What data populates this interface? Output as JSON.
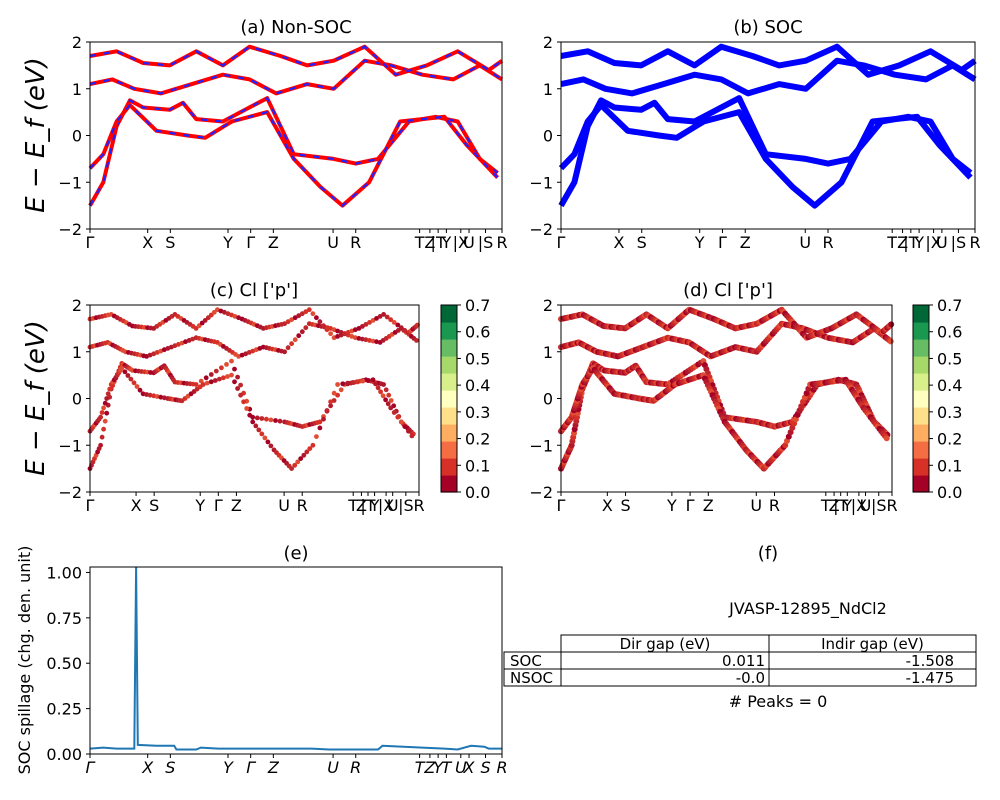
{
  "figure": {
    "ylabel_band": "E − E_f (eV)",
    "band_ylim": [
      -2,
      2
    ],
    "band_yticks": [
      "2",
      "1",
      "0",
      "−1",
      "−2"
    ],
    "kpath_full": [
      "Γ",
      "X",
      "S",
      "Y",
      "Γ",
      "Z",
      "U",
      "R",
      "T",
      "Z",
      "|T",
      "Y",
      "|X",
      "U",
      "|S",
      "R"
    ],
    "kpath_colorbar_panels": [
      "Γ",
      "X",
      "S",
      "Y",
      "Γ",
      "Z",
      "U",
      "R",
      "T",
      "Z",
      "|T",
      "Y",
      "|X",
      "U",
      "|S",
      "R"
    ],
    "kpath_italic": [
      "Γ",
      "X",
      "S",
      "Y",
      "Γ",
      "Z",
      "U",
      "R",
      "T",
      "Z",
      "Y",
      "T",
      "U",
      "X",
      "S",
      "R"
    ]
  },
  "panels": {
    "a": {
      "title": "(a) Non-SOC"
    },
    "b": {
      "title": "(b) SOC"
    },
    "c": {
      "title": "(c)  Cl ['p']"
    },
    "d": {
      "title": "(d) Cl ['p']"
    },
    "e": {
      "title": "(e)",
      "ylabel": "SOC spillage (chg. den. unit)",
      "yticks": [
        "1.00",
        "0.75",
        "0.50",
        "0.25",
        "0.00"
      ]
    },
    "f": {
      "title": "(f)"
    }
  },
  "colorbar": {
    "ticks": [
      "0.7",
      "0.6",
      "0.5",
      "0.4",
      "0.3",
      "0.2",
      "0.1",
      "0.0"
    ],
    "colors": [
      "#a50026",
      "#d73027",
      "#f46d43",
      "#fdae61",
      "#fee08b",
      "#ffffbf",
      "#d9ef8b",
      "#a6d96a",
      "#66bd63",
      "#1a9850",
      "#006837"
    ]
  },
  "info": {
    "material": "JVASP-12895_NdCl2",
    "table_headers": [
      "",
      "Dir gap (eV)",
      "Indir gap (eV)"
    ],
    "table_rows": [
      [
        "SOC",
        "0.011",
        "-1.508"
      ],
      [
        "NSOC",
        "-0.0",
        "-1.475"
      ]
    ],
    "peaks": "# Peaks = 0"
  },
  "chart_data": [
    {
      "type": "line",
      "panel": "a",
      "title": "(a) Non-SOC",
      "ylabel": "E − E_f (eV)",
      "ylim": [
        -2,
        2
      ],
      "xticks": [
        "Γ",
        "X",
        "S",
        "Y",
        "Γ",
        "Z",
        "U",
        "R",
        "T",
        "Z",
        "|T",
        "Y",
        "|X",
        "U",
        "|S",
        "R"
      ],
      "series": [
        {
          "color": "#ff0000",
          "values": [
            [
              0,
              -1.5
            ],
            [
              0.3,
              -1.0
            ],
            [
              0.6,
              0.2
            ],
            [
              0.9,
              0.75
            ],
            [
              1.2,
              0.6
            ],
            [
              1.8,
              0.55
            ],
            [
              2.1,
              0.7
            ],
            [
              2.4,
              0.35
            ],
            [
              3.0,
              0.3
            ],
            [
              4.0,
              0.8
            ],
            [
              4.6,
              -0.4
            ],
            [
              5.5,
              -0.5
            ],
            [
              6.0,
              -0.6
            ],
            [
              6.5,
              -0.5
            ],
            [
              7.2,
              0.3
            ],
            [
              7.8,
              0.4
            ],
            [
              8.3,
              0.3
            ],
            [
              8.8,
              -0.5
            ],
            [
              9.2,
              -0.8
            ]
          ]
        },
        {
          "color": "#ff0000",
          "values": [
            [
              0,
              -0.7
            ],
            [
              0.3,
              -0.4
            ],
            [
              0.6,
              0.3
            ],
            [
              0.9,
              0.65
            ],
            [
              1.5,
              0.1
            ],
            [
              2.2,
              0.0
            ],
            [
              2.6,
              -0.05
            ],
            [
              3.2,
              0.3
            ],
            [
              4.0,
              0.5
            ],
            [
              4.6,
              -0.5
            ],
            [
              5.2,
              -1.1
            ],
            [
              5.7,
              -1.5
            ],
            [
              6.3,
              -1.0
            ],
            [
              7.0,
              0.3
            ],
            [
              8.0,
              0.4
            ],
            [
              8.5,
              -0.2
            ],
            [
              9.2,
              -0.9
            ]
          ]
        },
        {
          "color": "#ff0000",
          "values": [
            [
              0,
              1.1
            ],
            [
              0.5,
              1.2
            ],
            [
              1.0,
              1.0
            ],
            [
              1.6,
              0.9
            ],
            [
              2.3,
              1.1
            ],
            [
              3.0,
              1.3
            ],
            [
              3.6,
              1.2
            ],
            [
              4.2,
              0.9
            ],
            [
              4.9,
              1.1
            ],
            [
              5.5,
              1.0
            ],
            [
              6.2,
              1.6
            ],
            [
              6.8,
              1.5
            ],
            [
              7.5,
              1.3
            ],
            [
              8.2,
              1.2
            ],
            [
              8.8,
              1.5
            ],
            [
              9.3,
              1.2
            ]
          ]
        },
        {
          "color": "#ff0000",
          "values": [
            [
              0,
              1.7
            ],
            [
              0.6,
              1.8
            ],
            [
              1.2,
              1.55
            ],
            [
              1.8,
              1.5
            ],
            [
              2.4,
              1.8
            ],
            [
              3.0,
              1.5
            ],
            [
              3.6,
              1.9
            ],
            [
              4.3,
              1.7
            ],
            [
              4.9,
              1.5
            ],
            [
              5.5,
              1.6
            ],
            [
              6.2,
              1.9
            ],
            [
              6.9,
              1.3
            ],
            [
              7.6,
              1.5
            ],
            [
              8.3,
              1.8
            ],
            [
              9.0,
              1.4
            ],
            [
              9.3,
              1.6
            ]
          ]
        }
      ]
    },
    {
      "type": "line",
      "panel": "b",
      "title": "(b) SOC",
      "ylim": [
        -2,
        2
      ],
      "xticks": [
        "Γ",
        "X",
        "S",
        "Y",
        "Γ",
        "Z",
        "U",
        "R",
        "T",
        "Z",
        "|T",
        "Y",
        "|X",
        "U",
        "|S",
        "R"
      ],
      "series": [
        {
          "color": "#0000ff",
          "values": [
            [
              0,
              -1.5
            ],
            [
              0.3,
              -1.0
            ],
            [
              0.6,
              0.2
            ],
            [
              0.9,
              0.75
            ],
            [
              1.2,
              0.6
            ],
            [
              1.8,
              0.55
            ],
            [
              2.1,
              0.7
            ],
            [
              2.4,
              0.35
            ],
            [
              3.0,
              0.3
            ],
            [
              4.0,
              0.8
            ],
            [
              4.6,
              -0.4
            ],
            [
              5.5,
              -0.5
            ],
            [
              6.0,
              -0.6
            ],
            [
              6.5,
              -0.5
            ],
            [
              7.2,
              0.3
            ],
            [
              7.8,
              0.4
            ],
            [
              8.3,
              0.3
            ],
            [
              8.8,
              -0.5
            ],
            [
              9.2,
              -0.8
            ]
          ]
        },
        {
          "color": "#0000ff",
          "values": [
            [
              0,
              -0.7
            ],
            [
              0.3,
              -0.4
            ],
            [
              0.6,
              0.3
            ],
            [
              0.9,
              0.65
            ],
            [
              1.5,
              0.1
            ],
            [
              2.2,
              0.0
            ],
            [
              2.6,
              -0.05
            ],
            [
              3.2,
              0.3
            ],
            [
              4.0,
              0.5
            ],
            [
              4.6,
              -0.5
            ],
            [
              5.2,
              -1.1
            ],
            [
              5.7,
              -1.5
            ],
            [
              6.3,
              -1.0
            ],
            [
              7.0,
              0.3
            ],
            [
              8.0,
              0.4
            ],
            [
              8.5,
              -0.2
            ],
            [
              9.2,
              -0.9
            ]
          ]
        },
        {
          "color": "#0000ff",
          "values": [
            [
              0,
              1.1
            ],
            [
              0.5,
              1.2
            ],
            [
              1.0,
              1.0
            ],
            [
              1.6,
              0.9
            ],
            [
              2.3,
              1.1
            ],
            [
              3.0,
              1.3
            ],
            [
              3.6,
              1.2
            ],
            [
              4.2,
              0.9
            ],
            [
              4.9,
              1.1
            ],
            [
              5.5,
              1.0
            ],
            [
              6.2,
              1.6
            ],
            [
              6.8,
              1.5
            ],
            [
              7.5,
              1.3
            ],
            [
              8.2,
              1.2
            ],
            [
              8.8,
              1.5
            ],
            [
              9.3,
              1.2
            ]
          ]
        },
        {
          "color": "#0000ff",
          "values": [
            [
              0,
              1.7
            ],
            [
              0.6,
              1.8
            ],
            [
              1.2,
              1.55
            ],
            [
              1.8,
              1.5
            ],
            [
              2.4,
              1.8
            ],
            [
              3.0,
              1.5
            ],
            [
              3.6,
              1.9
            ],
            [
              4.3,
              1.7
            ],
            [
              4.9,
              1.5
            ],
            [
              5.5,
              1.6
            ],
            [
              6.2,
              1.9
            ],
            [
              6.9,
              1.3
            ],
            [
              7.6,
              1.5
            ],
            [
              8.3,
              1.8
            ],
            [
              9.0,
              1.4
            ],
            [
              9.3,
              1.6
            ]
          ]
        }
      ]
    },
    {
      "type": "scatter",
      "panel": "c",
      "title": "(c)  Cl ['p']",
      "ylabel": "E − E_f (eV)",
      "ylim": [
        -2,
        2
      ],
      "colorbar_range": [
        0.0,
        0.7
      ],
      "xticks": [
        "Γ",
        "X",
        "S",
        "Y",
        "Γ",
        "Z",
        "U",
        "R",
        "T",
        "Z",
        "|T",
        "Y",
        "|X",
        "U",
        "|S",
        "R"
      ]
    },
    {
      "type": "scatter",
      "panel": "d",
      "title": "(d) Cl ['p']",
      "ylim": [
        -2,
        2
      ],
      "colorbar_range": [
        0.0,
        0.7
      ],
      "xticks": [
        "Γ",
        "X",
        "S",
        "Y",
        "Γ",
        "Z",
        "U",
        "R",
        "T",
        "Z",
        "|T",
        "Y",
        "|X",
        "U",
        "|S",
        "R"
      ]
    },
    {
      "type": "line",
      "panel": "e",
      "title": "(e)",
      "ylabel": "SOC spillage (chg. den. unit)",
      "ylim": [
        0,
        1.03
      ],
      "xticks": [
        "Γ",
        "X",
        "S",
        "Y",
        "Γ",
        "Z",
        "U",
        "R",
        "T",
        "Z",
        "Y",
        "T",
        "U",
        "X",
        "S",
        "R"
      ],
      "series": [
        {
          "color": "#1f77b4",
          "values": [
            [
              0,
              0.03
            ],
            [
              0.3,
              0.035
            ],
            [
              0.6,
              0.03
            ],
            [
              1.0,
              0.03
            ],
            [
              1.04,
              1.03
            ],
            [
              1.08,
              0.05
            ],
            [
              1.5,
              0.045
            ],
            [
              1.9,
              0.045
            ],
            [
              1.95,
              0.025
            ],
            [
              2.4,
              0.025
            ],
            [
              2.5,
              0.035
            ],
            [
              2.9,
              0.03
            ],
            [
              3.5,
              0.03
            ],
            [
              4.5,
              0.03
            ],
            [
              5.0,
              0.03
            ],
            [
              5.4,
              0.025
            ],
            [
              6.5,
              0.025
            ],
            [
              6.6,
              0.045
            ],
            [
              7.5,
              0.035
            ],
            [
              8.0,
              0.03
            ],
            [
              8.3,
              0.025
            ],
            [
              8.6,
              0.045
            ],
            [
              8.9,
              0.04
            ],
            [
              9.0,
              0.03
            ],
            [
              9.3,
              0.03
            ]
          ]
        }
      ]
    }
  ]
}
